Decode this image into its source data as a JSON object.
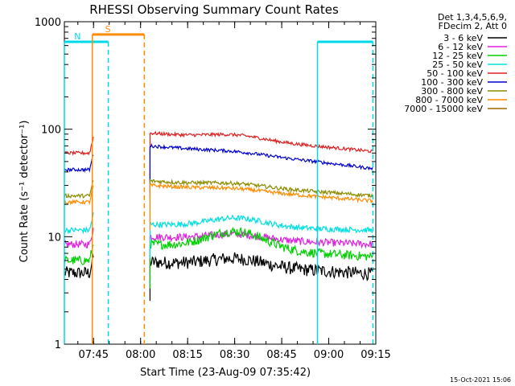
{
  "chart_data": {
    "type": "line",
    "title": "RHESSI Observing Summary Count Rates",
    "xlabel": "Start Time (23-Aug-09 07:35:42)",
    "ylabel": "Count Rate (s⁻¹ detector⁻¹)",
    "x_unit": "minutes after 07:35:42",
    "xlim": [
      0,
      99.3
    ],
    "ylim": [
      1,
      1000
    ],
    "y_scale": "log",
    "x_ticks": [
      {
        "label": "07:45",
        "minute": 9.3
      },
      {
        "label": "08:00",
        "minute": 24.3
      },
      {
        "label": "08:15",
        "minute": 39.3
      },
      {
        "label": "08:30",
        "minute": 54.3
      },
      {
        "label": "08:45",
        "minute": 69.3
      },
      {
        "label": "09:00",
        "minute": 84.3
      },
      {
        "label": "09:15",
        "minute": 99.3
      }
    ],
    "y_ticks": [
      {
        "label": "1",
        "value": 1
      },
      {
        "label": "10",
        "value": 10
      },
      {
        "label": "100",
        "value": 100
      },
      {
        "label": "1000",
        "value": 1000
      }
    ],
    "legend_header": [
      "Det 1,3,4,5,6,9,",
      "FDecim 2, Att 0"
    ],
    "legend_placement": "right",
    "timestamp": "15-Oct-2021 15:06",
    "series": [
      {
        "name": "3 - 6 keV",
        "color": "#000000",
        "before": 4.6,
        "after_start": 5.8,
        "after_end": 4.5,
        "bump": 1.18,
        "noise": 0.14
      },
      {
        "name": "6 - 12 keV",
        "color": "#e020e0",
        "before": 8.5,
        "after_start": 10.0,
        "after_end": 8.5,
        "bump": 1.12,
        "noise": 0.08
      },
      {
        "name": "12 - 25 keV",
        "color": "#00d000",
        "before": 6.0,
        "after_start": 8.5,
        "after_end": 6.5,
        "bump": 1.45,
        "noise": 0.1
      },
      {
        "name": "25 - 50 keV",
        "color": "#00e0e0",
        "before": 11.5,
        "after_start": 13.0,
        "after_end": 11.5,
        "bump": 1.2,
        "noise": 0.06
      },
      {
        "name": "50 - 100 keV",
        "color": "#e02020",
        "before": 60,
        "after_start": 92,
        "after_end": 62,
        "bump": 1.1,
        "noise": 0.035
      },
      {
        "name": "100 - 300 keV",
        "color": "#0000d0",
        "before": 42,
        "after_start": 70,
        "after_end": 43,
        "bump": 1.04,
        "noise": 0.035
      },
      {
        "name": "300 - 800 keV",
        "color": "#8c8c00",
        "before": 24,
        "after_start": 33,
        "after_end": 24,
        "bump": 1.06,
        "noise": 0.04
      },
      {
        "name": "800 - 7000 keV",
        "color": "#ff8c00",
        "before": 21,
        "after_start": 30,
        "after_end": 21.5,
        "bump": 1.05,
        "noise": 0.04
      },
      {
        "name": "7000 - 15000 keV",
        "color": "#a06a00",
        "before": null,
        "after_start": null,
        "after_end": null,
        "bump": 1,
        "noise": 0
      }
    ],
    "data_gaps": [
      {
        "start": 9.3,
        "end": 27.3
      }
    ],
    "intervals": [
      {
        "label": "N",
        "color": "#00d8e8",
        "level": 650,
        "start_minute": 0,
        "end_minute": 14.0,
        "dashed_end": true
      },
      {
        "label": "S",
        "color": "#ff8c00",
        "level": 760,
        "start_minute": 8.9,
        "end_minute": 25.5,
        "dashed_end": true
      },
      {
        "label": "",
        "color": "#00d8e8",
        "level": 650,
        "start_minute": 80.7,
        "end_minute": 98.4,
        "dashed_end": true
      }
    ]
  }
}
